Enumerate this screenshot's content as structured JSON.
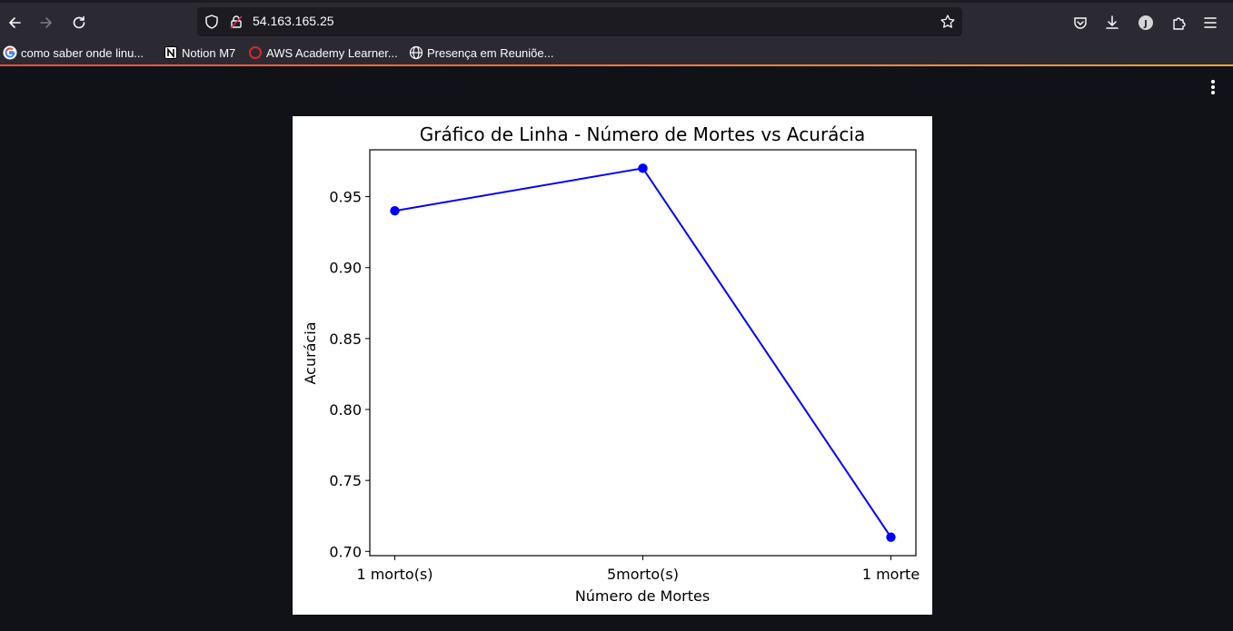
{
  "browser": {
    "url": "54.163.165.25",
    "accent_colors": [
      "#f44e3b",
      "#f6a43c"
    ],
    "bookmarks": [
      {
        "label": "como saber onde linu...",
        "icon": "google-icon"
      },
      {
        "label": "Notion M7",
        "icon": "notion-icon"
      },
      {
        "label": "AWS Academy Learner...",
        "icon": "aws-ring-icon"
      },
      {
        "label": "Presença em Reuniõe...",
        "icon": "globe-icon"
      }
    ],
    "profile_initial": "J"
  },
  "chart_data": {
    "type": "line",
    "title": "Gráfico de Linha - Número de Mortes vs Acurácia",
    "xlabel": "Número de Mortes",
    "ylabel": "Acurácia",
    "categories": [
      "1 morto(s)",
      "5morto(s)",
      "1 morte"
    ],
    "values": [
      0.94,
      0.97,
      0.71
    ],
    "ylim": [
      0.697,
      0.983
    ],
    "yticks": [
      "0.70",
      "0.75",
      "0.80",
      "0.85",
      "0.90",
      "0.95"
    ],
    "line_color": "#0000ff",
    "marker": "circle",
    "grid": false
  }
}
